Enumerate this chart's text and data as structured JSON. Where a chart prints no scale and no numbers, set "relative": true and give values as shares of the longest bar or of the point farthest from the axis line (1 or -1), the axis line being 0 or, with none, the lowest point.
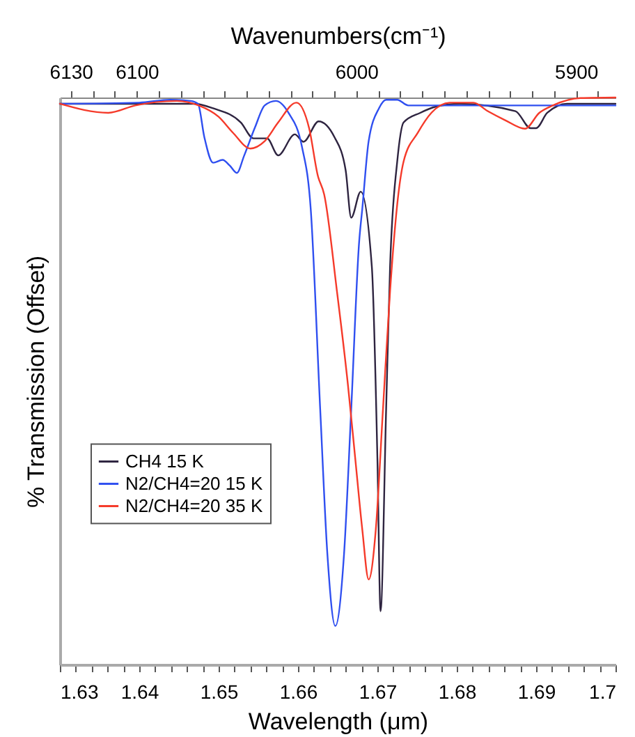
{
  "chart_data": {
    "type": "line",
    "xlabel": "Wavelength (μm)",
    "ylabel": "% Transmission (Offset)",
    "x2label": "Wavenumbers(cm⁻¹)",
    "relative": true,
    "legend": "left",
    "grid": false,
    "line_style": "solid",
    "marker": "none",
    "xlim": [
      1.63,
      1.7
    ],
    "xticks": [
      1.63,
      {
        "value": 1.632,
        "label": null
      },
      {
        "value": 1.634,
        "label": null
      },
      {
        "value": 1.636,
        "label": null
      },
      {
        "value": 1.638,
        "label": null
      },
      1.64,
      {
        "value": 1.642,
        "label": null
      },
      {
        "value": 1.644,
        "label": null
      },
      {
        "value": 1.646,
        "label": null
      },
      {
        "value": 1.648,
        "label": null
      },
      1.65,
      {
        "value": 1.652,
        "label": null
      },
      {
        "value": 1.654,
        "label": null
      },
      {
        "value": 1.656,
        "label": null
      },
      {
        "value": 1.658,
        "label": null
      },
      1.66,
      {
        "value": 1.662,
        "label": null
      },
      {
        "value": 1.664,
        "label": null
      },
      {
        "value": 1.666,
        "label": null
      },
      {
        "value": 1.668,
        "label": null
      },
      1.67,
      {
        "value": 1.672,
        "label": null
      },
      {
        "value": 1.674,
        "label": null
      },
      {
        "value": 1.676,
        "label": null
      },
      {
        "value": 1.678,
        "label": null
      },
      1.68,
      {
        "value": 1.682,
        "label": null
      },
      {
        "value": 1.684,
        "label": null
      },
      {
        "value": 1.686,
        "label": null
      },
      {
        "value": 1.688,
        "label": null
      },
      1.69,
      {
        "value": 1.692,
        "label": null
      },
      {
        "value": 1.694,
        "label": null
      },
      {
        "value": 1.696,
        "label": null
      },
      {
        "value": 1.698,
        "label": null
      },
      1.7
    ],
    "x2lim": [
      6135,
      5882
    ],
    "x2ticks": [
      6130,
      {
        "value": 6120,
        "label": null
      },
      {
        "value": 6110,
        "label": null
      },
      6100,
      {
        "value": 6090,
        "label": null
      },
      {
        "value": 6080,
        "label": null
      },
      {
        "value": 6070,
        "label": null
      },
      {
        "value": 6060,
        "label": null
      },
      {
        "value": 6050,
        "label": null
      },
      {
        "value": 6040,
        "label": null
      },
      {
        "value": 6030,
        "label": null
      },
      {
        "value": 6020,
        "label": null
      },
      {
        "value": 6010,
        "label": null
      },
      6000,
      {
        "value": 5990,
        "label": null
      },
      {
        "value": 5980,
        "label": null
      },
      {
        "value": 5970,
        "label": null
      },
      {
        "value": 5960,
        "label": null
      },
      {
        "value": 5950,
        "label": null
      },
      {
        "value": 5940,
        "label": null
      },
      {
        "value": 5930,
        "label": null
      },
      {
        "value": 5920,
        "label": null
      },
      {
        "value": 5910,
        "label": null
      },
      5900,
      {
        "value": 5890,
        "label": null
      }
    ],
    "series": [
      {
        "name": "CH4 15 K",
        "color": "#2e2440",
        "x": [
          1.63,
          1.647,
          1.6493,
          1.6528,
          1.6544,
          1.6561,
          1.6575,
          1.6596,
          1.6607,
          1.6626,
          1.6646,
          1.666,
          1.6667,
          1.6679,
          1.6693,
          1.67,
          1.6704,
          1.6711,
          1.6716,
          1.6725,
          1.6733,
          1.6754,
          1.6774,
          1.6804,
          1.6874,
          1.6893,
          1.69,
          1.6914,
          1.6939,
          1.7
        ],
        "values": [
          0.989,
          0.989,
          0.981,
          0.956,
          0.928,
          0.928,
          0.898,
          0.935,
          0.922,
          0.958,
          0.93,
          0.872,
          0.788,
          0.834,
          0.702,
          0.365,
          0.094,
          0.449,
          0.702,
          0.887,
          0.956,
          0.973,
          0.984,
          0.989,
          0.976,
          0.946,
          0.946,
          0.973,
          0.989,
          0.989
        ]
      },
      {
        "name": "N2/CH4=20 15 K",
        "color": "#2f4ff0",
        "x": [
          1.63,
          1.64,
          1.6439,
          1.6465,
          1.6474,
          1.6482,
          1.6493,
          1.6505,
          1.6514,
          1.6523,
          1.6532,
          1.6546,
          1.6558,
          1.6572,
          1.6588,
          1.6605,
          1.6616,
          1.6628,
          1.6637,
          1.6647,
          1.6658,
          1.6667,
          1.6677,
          1.6681,
          1.6689,
          1.6702,
          1.6711,
          1.6725,
          1.6739,
          1.7
        ],
        "values": [
          0.989,
          0.991,
          0.996,
          0.994,
          0.989,
          0.93,
          0.885,
          0.89,
          0.88,
          0.867,
          0.897,
          0.948,
          0.986,
          0.994,
          0.973,
          0.913,
          0.804,
          0.449,
          0.195,
          0.068,
          0.195,
          0.449,
          0.745,
          0.804,
          0.923,
          0.981,
          0.996,
          0.996,
          0.986,
          0.986
        ]
      },
      {
        "name": "N2/CH4=20 35 K",
        "color": "#f53a2a",
        "x": [
          1.63,
          1.6361,
          1.6395,
          1.6447,
          1.6475,
          1.65,
          1.6518,
          1.654,
          1.6558,
          1.6575,
          1.6598,
          1.6614,
          1.6625,
          1.6633,
          1.6649,
          1.6663,
          1.6672,
          1.6681,
          1.6689,
          1.6698,
          1.6707,
          1.6716,
          1.6728,
          1.6733,
          1.6751,
          1.6768,
          1.6791,
          1.6821,
          1.6839,
          1.6861,
          1.6886,
          1.6904,
          1.6921,
          1.6956,
          1.7
        ],
        "values": [
          0.989,
          0.973,
          0.986,
          0.994,
          0.986,
          0.966,
          0.938,
          0.91,
          0.923,
          0.956,
          0.991,
          0.946,
          0.862,
          0.829,
          0.659,
          0.492,
          0.365,
          0.238,
          0.15,
          0.238,
          0.449,
          0.659,
          0.847,
          0.887,
          0.938,
          0.973,
          0.991,
          0.991,
          0.976,
          0.96,
          0.945,
          0.973,
          0.986,
          0.999,
          1
        ]
      }
    ]
  }
}
